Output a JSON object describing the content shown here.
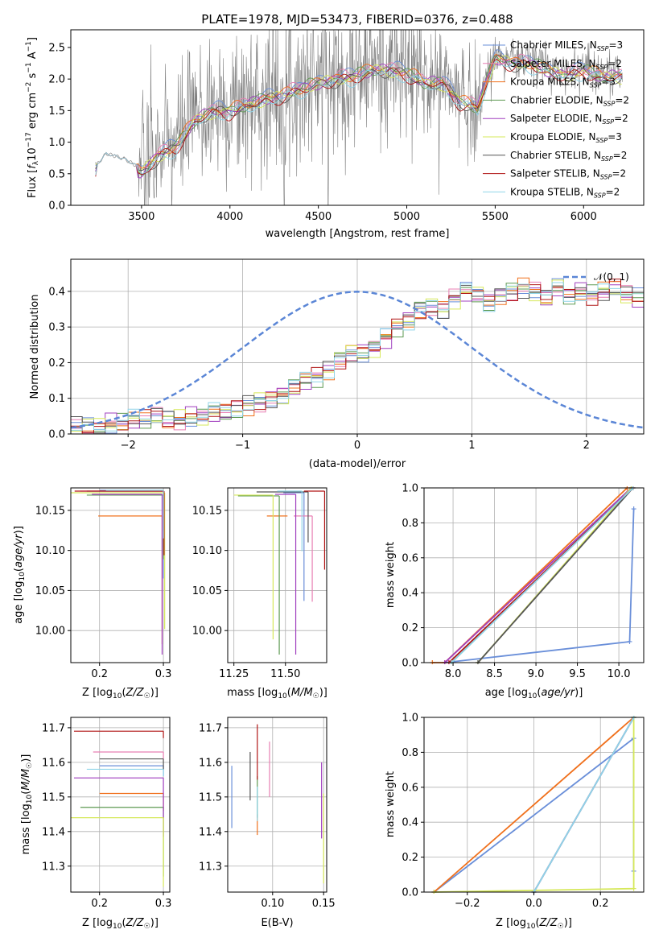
{
  "title": "PLATE=1978, MJD=53473, FIBERID=0376, z=0.488",
  "colors": {
    "Chabrier MILES": "#6a8fd9",
    "Salpeter MILES": "#e87fb3",
    "Kroupa MILES": "#f0701c",
    "Chabrier ELODIE": "#5e9a52",
    "Salpeter ELODIE": "#a03fbf",
    "Kroupa ELODIE": "#d6e85a",
    "Chabrier STELIB": "#555555",
    "Salpeter STELIB": "#b01515",
    "Kroupa STELIB": "#8fd4e8"
  },
  "chart_data": [
    {
      "id": "spectrum",
      "type": "line",
      "xlabel": "wavelength [Angstrom, rest frame]",
      "ylabel": "Flux [f_λ 10^-17 erg cm^-2 s^-1 A^-1]",
      "xlim": [
        3100,
        6340
      ],
      "ylim": [
        0,
        2.78
      ],
      "xticks": [
        3500,
        4000,
        4500,
        5000,
        5500,
        6000
      ],
      "yticks": [
        0.0,
        0.5,
        1.0,
        1.5,
        2.0,
        2.5
      ],
      "legend_position": "top-right",
      "legend": [
        {
          "label": "Chabrier MILES, N",
          "sub": "SSP",
          "suffix": "=3"
        },
        {
          "label": "Salpeter MILES, N",
          "sub": "SSP",
          "suffix": "=2"
        },
        {
          "label": "Kroupa MILES, N",
          "sub": "SSP",
          "suffix": "=3"
        },
        {
          "label": "Chabrier ELODIE, N",
          "sub": "SSP",
          "suffix": "=2"
        },
        {
          "label": "Salpeter ELODIE, N",
          "sub": "SSP",
          "suffix": "=2"
        },
        {
          "label": "Kroupa ELODIE, N",
          "sub": "SSP",
          "suffix": "=3"
        },
        {
          "label": "Chabrier STELIB, N",
          "sub": "SSP",
          "suffix": "=2"
        },
        {
          "label": "Salpeter STELIB, N",
          "sub": "SSP",
          "suffix": "=2"
        },
        {
          "label": "Kroupa STELIB, N",
          "sub": "SSP",
          "suffix": "=2"
        }
      ],
      "continuum": [
        [
          3240,
          0.62
        ],
        [
          3300,
          0.82
        ],
        [
          3400,
          0.74
        ],
        [
          3500,
          0.58
        ],
        [
          3600,
          0.85
        ],
        [
          3700,
          1.0
        ],
        [
          3800,
          1.4
        ],
        [
          3900,
          1.55
        ],
        [
          4000,
          1.55
        ],
        [
          4100,
          1.65
        ],
        [
          4200,
          1.75
        ],
        [
          4300,
          1.8
        ],
        [
          4400,
          1.9
        ],
        [
          4500,
          2.0
        ],
        [
          4600,
          2.05
        ],
        [
          4700,
          2.1
        ],
        [
          4800,
          2.2
        ],
        [
          4900,
          2.2
        ],
        [
          5000,
          2.15
        ],
        [
          5100,
          2.0
        ],
        [
          5200,
          2.0
        ],
        [
          5300,
          1.7
        ],
        [
          5400,
          1.6
        ],
        [
          5500,
          2.4
        ],
        [
          5600,
          2.3
        ],
        [
          5700,
          2.3
        ],
        [
          5800,
          2.2
        ],
        [
          5900,
          2.1
        ],
        [
          6000,
          2.2
        ],
        [
          6100,
          2.1
        ],
        [
          6220,
          2.1
        ]
      ]
    },
    {
      "id": "residuals",
      "type": "histogram",
      "xlabel": "(data-model)/error",
      "ylabel": "Normed distribution",
      "xlim": [
        -2.5,
        2.5
      ],
      "ylim": [
        0,
        0.49
      ],
      "xticks": [
        -2,
        -1,
        0,
        1,
        2
      ],
      "yticks": [
        0.0,
        0.1,
        0.2,
        0.3,
        0.4
      ],
      "grid": true,
      "legend_position": "top-right",
      "reference_curve": {
        "label": "𝒩(0, 1)",
        "mean": 0,
        "sigma": 1,
        "style": "dashed"
      },
      "bin_width": 0.1,
      "values": [
        0.02,
        0.02,
        0.02,
        0.03,
        0.03,
        0.04,
        0.04,
        0.05,
        0.04,
        0.04,
        0.05,
        0.05,
        0.06,
        0.06,
        0.07,
        0.08,
        0.09,
        0.1,
        0.11,
        0.13,
        0.15,
        0.16,
        0.18,
        0.21,
        0.23,
        0.23,
        0.24,
        0.27,
        0.3,
        0.32,
        0.35,
        0.36,
        0.35,
        0.38,
        0.4,
        0.39,
        0.37,
        0.39,
        0.4,
        0.41,
        0.4,
        0.38,
        0.41,
        0.39,
        0.4,
        0.39,
        0.4,
        0.41,
        0.39,
        0.38,
        0.39,
        0.4,
        0.41,
        0.42,
        0.39,
        0.4,
        0.41,
        0.4,
        0.38,
        0.35,
        0.3,
        0.27,
        0.24,
        0.21,
        0.22,
        0.22,
        0.23,
        0.25,
        0.24,
        0.23,
        0.19,
        0.16,
        0.13,
        0.11,
        0.11,
        0.09,
        0.1,
        0.09,
        0.1,
        0.09,
        0.09,
        0.08,
        0.08,
        0.07,
        0.07,
        0.06,
        0.07,
        0.06,
        0.05,
        0.06,
        0.05,
        0.05,
        0.05,
        0.04,
        0.04,
        0.05,
        0.04,
        0.05,
        0.04,
        0.04
      ]
    },
    {
      "id": "age-vs-Z",
      "type": "errorbar",
      "xlabel": "Z [log10(Z/Z☉)]",
      "ylabel": "age [log10(age/yr)]",
      "xlim": [
        0.155,
        0.31
      ],
      "ylim": [
        9.96,
        10.178
      ],
      "xticks": [
        0.2,
        0.3
      ],
      "yticks": [
        10.0,
        10.05,
        10.1,
        10.15
      ],
      "grid": true,
      "points": [
        {
          "series": "Chabrier MILES",
          "x": 0.3,
          "y": 10.175,
          "xerr_lo": 0.1,
          "yerr_lo": 0.11
        },
        {
          "series": "Salpeter MILES",
          "x": 0.3,
          "y": 10.174,
          "xerr_lo": 0.13,
          "yerr_lo": 0.07
        },
        {
          "series": "Kroupa MILES",
          "x": 0.298,
          "y": 10.143,
          "xerr_lo": 0.1,
          "yerr_lo": 0.16
        },
        {
          "series": "Chabrier ELODIE",
          "x": 0.3,
          "y": 10.169,
          "xerr_lo": 0.12,
          "yerr_lo": 0.08
        },
        {
          "series": "Salpeter ELODIE",
          "x": 0.298,
          "y": 10.17,
          "xerr_lo": 0.11,
          "yerr_lo": 0.2
        },
        {
          "series": "Kroupa ELODIE",
          "x": 0.302,
          "y": 10.172,
          "xerr_lo": 0.15,
          "yerr_lo": 0.17
        },
        {
          "series": "Chabrier STELIB",
          "x": 0.3,
          "y": 10.174,
          "xerr_lo": 0.12,
          "yerr_lo": 0.05
        },
        {
          "series": "Salpeter STELIB",
          "x": 0.301,
          "y": 10.174,
          "xerr_lo": 0.14,
          "yerr_lo": 0.08
        },
        {
          "series": "Kroupa STELIB",
          "x": 0.3,
          "y": 10.175,
          "xerr_lo": 0.09,
          "yerr_lo": 0.06
        }
      ]
    },
    {
      "id": "age-vs-mass",
      "type": "errorbar",
      "xlabel": "mass [log10(M/M☉)]",
      "ylabel": "",
      "xlim": [
        11.22,
        11.7
      ],
      "ylim": [
        9.96,
        10.178
      ],
      "xticks": [
        11.25,
        11.5
      ],
      "yticks": [
        10.0,
        10.05,
        10.1,
        10.15
      ],
      "grid": true,
      "points": [
        {
          "series": "Chabrier MILES",
          "x": 11.59,
          "y": 10.172,
          "xerr_lo": 0.1,
          "yerr_lo": 0.135
        },
        {
          "series": "Salpeter MILES",
          "x": 11.63,
          "y": 10.143,
          "xerr_lo": 0.09,
          "yerr_lo": 0.107
        },
        {
          "series": "Kroupa MILES",
          "x": 11.51,
          "y": 10.143,
          "xerr_lo": 0.1,
          "yerr_lo": 0.0
        },
        {
          "series": "Chabrier ELODIE",
          "x": 11.47,
          "y": 10.168,
          "xerr_lo": 0.2,
          "yerr_lo": 0.198
        },
        {
          "series": "Salpeter ELODIE",
          "x": 11.55,
          "y": 10.17,
          "xerr_lo": 0.1,
          "yerr_lo": 0.2
        },
        {
          "series": "Kroupa ELODIE",
          "x": 11.44,
          "y": 10.169,
          "xerr_lo": 0.19,
          "yerr_lo": 0.18
        },
        {
          "series": "Chabrier STELIB",
          "x": 11.61,
          "y": 10.173,
          "xerr_lo": 0.25,
          "yerr_lo": 0.063
        },
        {
          "series": "Salpeter STELIB",
          "x": 11.69,
          "y": 10.174,
          "xerr_lo": 0.1,
          "yerr_lo": 0.098
        },
        {
          "series": "Kroupa STELIB",
          "x": 11.58,
          "y": 10.174,
          "xerr_lo": 0.12,
          "yerr_lo": 0.075
        }
      ]
    },
    {
      "id": "mass-weight-vs-age",
      "type": "line",
      "xlabel": "age [log10(age/yr)]",
      "ylabel": "mass weight",
      "xlim": [
        7.65,
        10.3
      ],
      "ylim": [
        0.0,
        1.0
      ],
      "xticks": [
        8.0,
        8.5,
        9.0,
        9.5,
        10.0
      ],
      "yticks": [
        0.0,
        0.2,
        0.4,
        0.6,
        0.8,
        1.0
      ],
      "grid": true,
      "series": [
        {
          "name": "Chabrier MILES",
          "points": [
            [
              7.9,
              0.0
            ],
            [
              10.13,
              0.12
            ],
            [
              10.18,
              0.88
            ]
          ]
        },
        {
          "name": "Salpeter MILES",
          "points": [
            [
              7.9,
              0.0
            ],
            [
              10.15,
              1.0
            ]
          ]
        },
        {
          "name": "Kroupa MILES",
          "points": [
            [
              7.75,
              0.0
            ],
            [
              7.9,
              0.0
            ],
            [
              10.1,
              1.0
            ]
          ]
        },
        {
          "name": "Chabrier ELODIE",
          "points": [
            [
              7.98,
              0.0
            ],
            [
              10.15,
              1.0
            ]
          ]
        },
        {
          "name": "Salpeter ELODIE",
          "points": [
            [
              7.9,
              0.0
            ],
            [
              10.15,
              1.0
            ]
          ]
        },
        {
          "name": "Kroupa ELODIE",
          "points": [
            [
              8.3,
              0.0
            ],
            [
              10.15,
              1.0
            ]
          ]
        },
        {
          "name": "Chabrier STELIB",
          "points": [
            [
              8.3,
              0.0
            ],
            [
              10.17,
              1.0
            ]
          ]
        },
        {
          "name": "Salpeter STELIB",
          "points": [
            [
              7.95,
              0.0
            ],
            [
              10.17,
              1.0
            ]
          ]
        },
        {
          "name": "Kroupa STELIB",
          "points": [
            [
              7.98,
              0.0
            ],
            [
              10.17,
              1.0
            ]
          ]
        }
      ]
    },
    {
      "id": "mass-vs-Z",
      "type": "errorbar",
      "xlabel": "Z [log10(Z/Z☉)]",
      "ylabel": "mass [log10(M/M☉)]",
      "xlim": [
        0.155,
        0.31
      ],
      "ylim": [
        11.225,
        11.73
      ],
      "xticks": [
        0.2,
        0.3
      ],
      "yticks": [
        11.3,
        11.4,
        11.5,
        11.6,
        11.7
      ],
      "grid": true,
      "points": [
        {
          "series": "Chabrier MILES",
          "x": 0.3,
          "y": 11.59,
          "xerr_lo": 0.1,
          "yerr_lo": 0.03
        },
        {
          "series": "Salpeter MILES",
          "x": 0.3,
          "y": 11.63,
          "xerr_lo": 0.11,
          "yerr_lo": 0.02
        },
        {
          "series": "Kroupa MILES",
          "x": 0.3,
          "y": 11.51,
          "xerr_lo": 0.1,
          "yerr_lo": 0.05
        },
        {
          "series": "Chabrier ELODIE",
          "x": 0.3,
          "y": 11.47,
          "xerr_lo": 0.13,
          "yerr_lo": 0.2
        },
        {
          "series": "Salpeter ELODIE",
          "x": 0.3,
          "y": 11.555,
          "xerr_lo": 0.14,
          "yerr_lo": 0.17
        },
        {
          "series": "Kroupa ELODIE",
          "x": 0.3,
          "y": 11.44,
          "xerr_lo": 0.15,
          "yerr_lo": 0.2
        },
        {
          "series": "Chabrier STELIB",
          "x": 0.3,
          "y": 11.61,
          "xerr_lo": 0.1,
          "yerr_lo": 0.03
        },
        {
          "series": "Salpeter STELIB",
          "x": 0.3,
          "y": 11.69,
          "xerr_lo": 0.14,
          "yerr_lo": 0.02
        },
        {
          "series": "Kroupa STELIB",
          "x": 0.3,
          "y": 11.58,
          "xerr_lo": 0.12,
          "yerr_lo": 0.02
        }
      ]
    },
    {
      "id": "mass-vs-EBV",
      "type": "errorbar",
      "xlabel": "E(B-V)",
      "ylabel": "",
      "xlim": [
        0.056,
        0.153
      ],
      "ylim": [
        11.225,
        11.73
      ],
      "xticks": [
        0.1,
        0.15
      ],
      "yticks": [
        11.3,
        11.4,
        11.5,
        11.6,
        11.7
      ],
      "grid": true,
      "points": [
        {
          "series": "Chabrier MILES",
          "x": 0.06,
          "y": 11.5,
          "yerr": 0.09
        },
        {
          "series": "Salpeter MILES",
          "x": 0.097,
          "y": 11.58,
          "yerr": 0.08
        },
        {
          "series": "Kroupa MILES",
          "x": 0.085,
          "y": 11.42,
          "yerr": 0.03
        },
        {
          "series": "Chabrier ELODIE",
          "x": 0.085,
          "y": 11.5,
          "yerr": 0.06
        },
        {
          "series": "Salpeter ELODIE",
          "x": 0.148,
          "y": 11.49,
          "yerr": 0.11
        },
        {
          "series": "Kroupa ELODIE",
          "x": 0.15,
          "y": 11.38,
          "yerr": 0.13
        },
        {
          "series": "Chabrier STELIB",
          "x": 0.078,
          "y": 11.56,
          "yerr": 0.07
        },
        {
          "series": "Salpeter STELIB",
          "x": 0.085,
          "y": 11.63,
          "yerr": 0.08
        },
        {
          "series": "Kroupa STELIB",
          "x": 0.085,
          "y": 11.48,
          "yerr": 0.05
        }
      ]
    },
    {
      "id": "mass-weight-vs-Z",
      "type": "line",
      "xlabel": "Z [log10(Z/Z☉)]",
      "ylabel": "mass weight",
      "xlim": [
        -0.33,
        0.33
      ],
      "ylim": [
        0.0,
        1.0
      ],
      "xticks": [
        -0.2,
        0.0,
        0.2
      ],
      "yticks": [
        0.0,
        0.2,
        0.4,
        0.6,
        0.8,
        1.0
      ],
      "grid": true,
      "series": [
        {
          "name": "Chabrier MILES",
          "points": [
            [
              -0.3,
              0.0
            ],
            [
              0.3,
              0.88
            ],
            [
              0.3,
              0.12
            ]
          ]
        },
        {
          "name": "Kroupa MILES",
          "points": [
            [
              -0.3,
              0.0
            ],
            [
              0.3,
              1.0
            ]
          ]
        },
        {
          "name": "Chabrier ELODIE",
          "points": [
            [
              0.0,
              0.0
            ],
            [
              0.3,
              1.0
            ]
          ]
        },
        {
          "name": "Salpeter ELODIE",
          "points": [
            [
              0.0,
              0.0
            ],
            [
              0.3,
              1.0
            ]
          ]
        },
        {
          "name": "Kroupa ELODIE",
          "points": [
            [
              -0.3,
              0.0
            ],
            [
              0.3,
              0.02
            ],
            [
              0.3,
              1.0
            ]
          ]
        },
        {
          "name": "Kroupa STELIB",
          "points": [
            [
              0.0,
              0.0
            ],
            [
              0.3,
              1.0
            ]
          ]
        }
      ]
    }
  ]
}
